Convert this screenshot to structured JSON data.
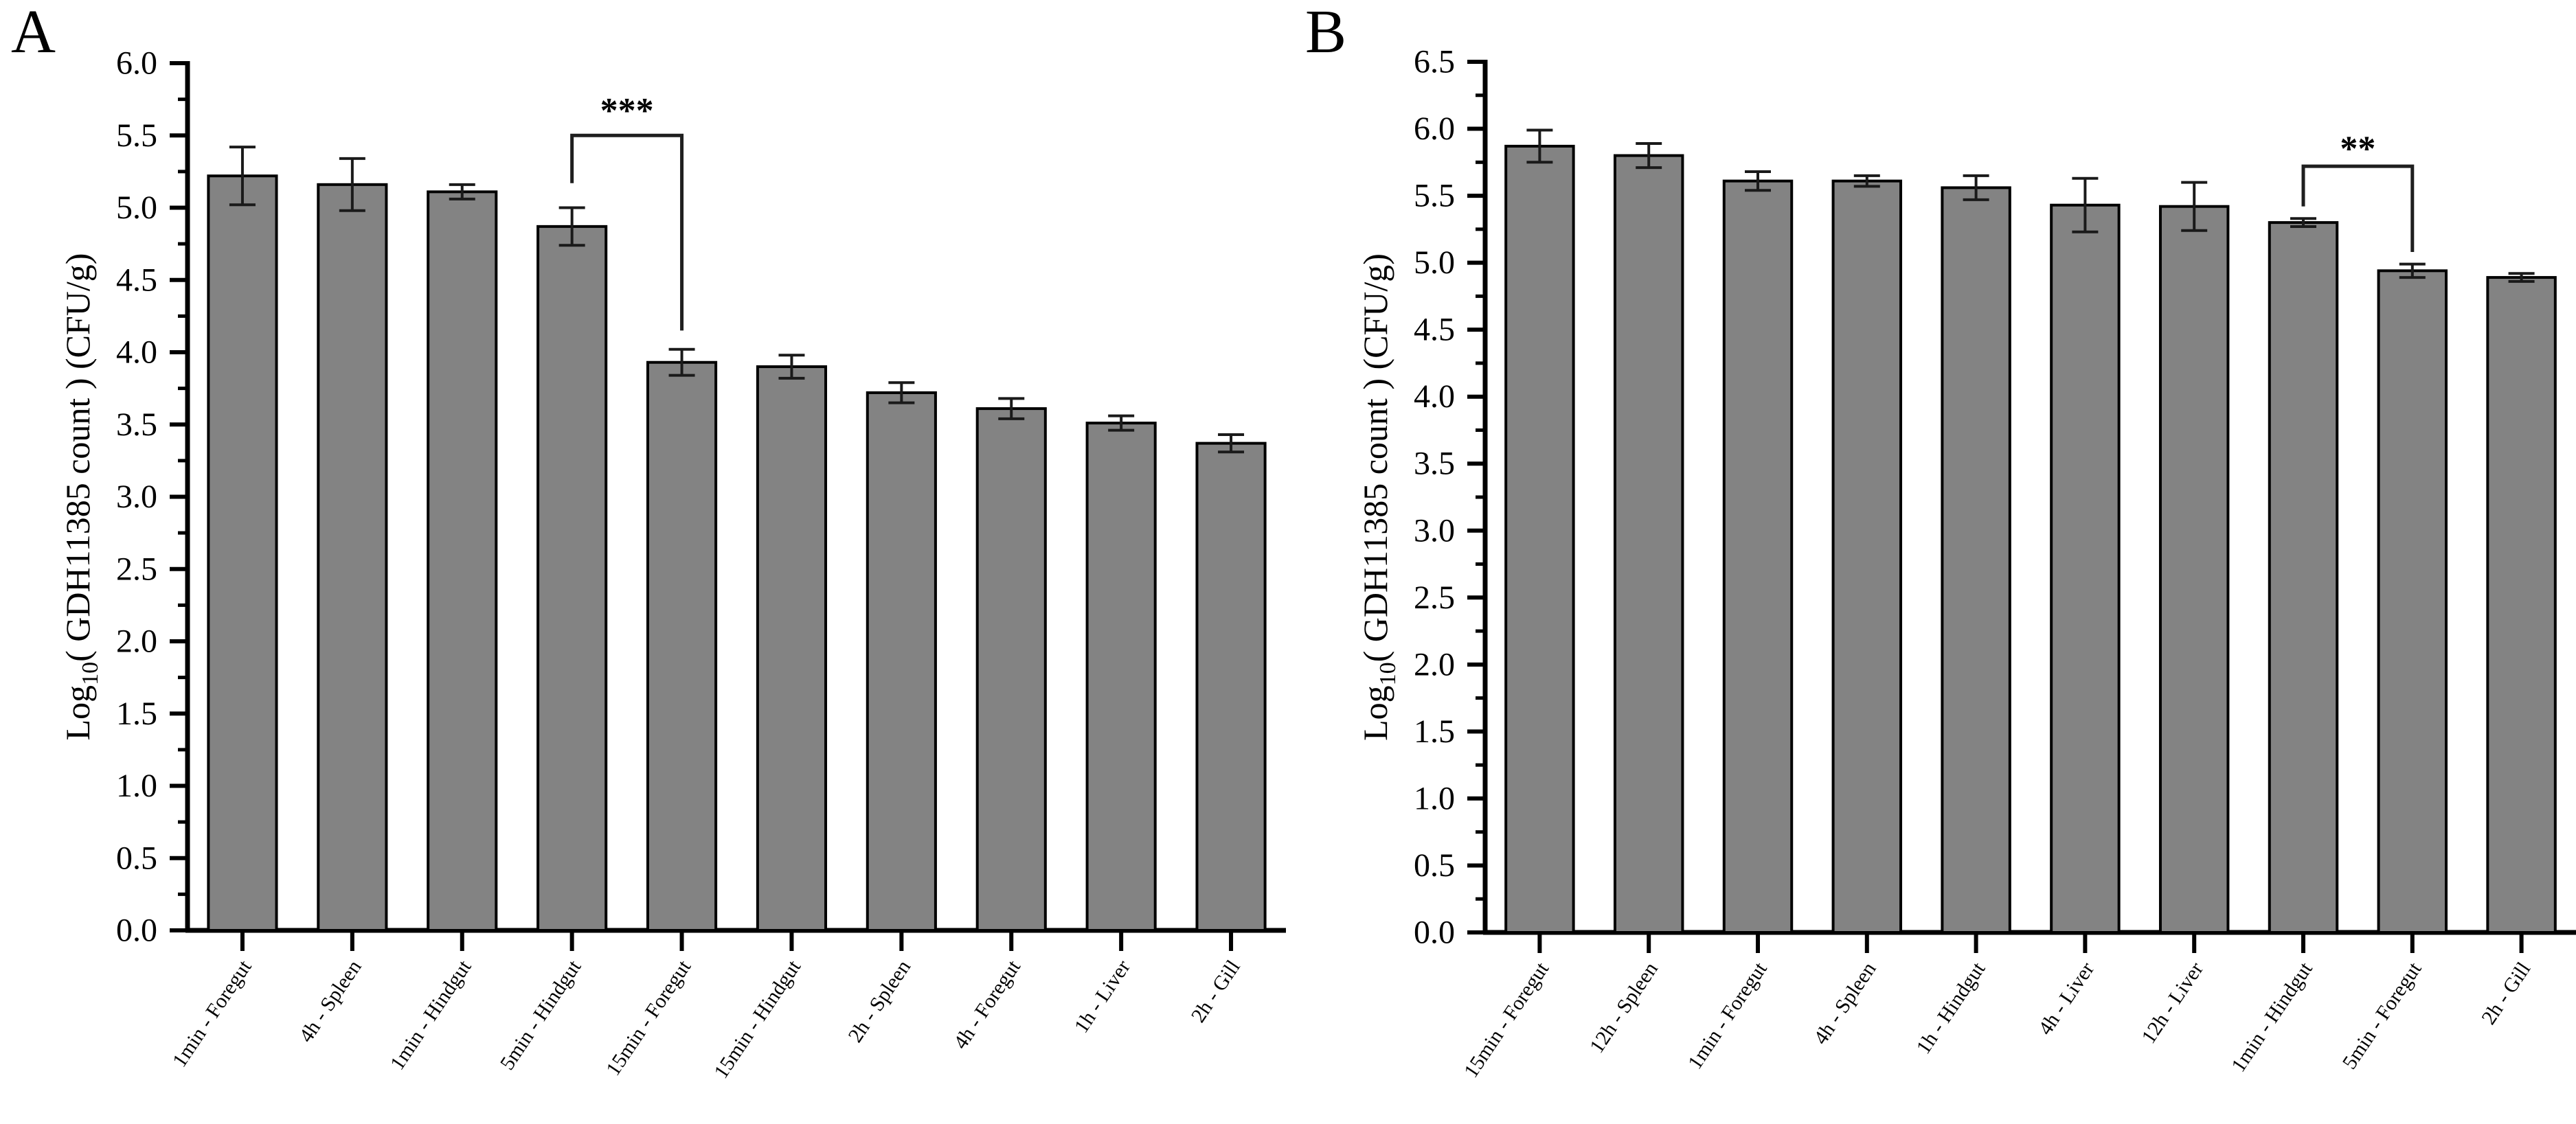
{
  "figure": {
    "background_color": "#ffffff",
    "bar_fill_color": "#838383",
    "bar_edge_color": "#000000",
    "axis_color": "#000000",
    "errorbar_color": "#1a1a1a",
    "bracket_color": "#1f1f1f",
    "text_color": "#000000"
  },
  "chart_data": [
    {
      "type": "bar",
      "panel_label": "A",
      "title": "",
      "xlabel": "",
      "ylabel": "Log10( GDH11385 count ) (CFU/g)",
      "ylabel_parts": {
        "prefix": "Log",
        "subscript": "10",
        "rest": "( GDH11385 count ) (CFU/g)"
      },
      "ylim": [
        0.0,
        6.0
      ],
      "ytick_interval": 0.5,
      "yminor_interval": 0.25,
      "grid": false,
      "legend": null,
      "categories": [
        "1min - Foregut",
        "4h - Spleen",
        "1min - Hindgut",
        "5min - Hindgut",
        "15min - Foregut",
        "15min - Hindgut",
        "2h - Spleen",
        "4h - Foregut",
        "1h - Liver",
        "2h - Gill"
      ],
      "values": [
        5.22,
        5.16,
        5.11,
        4.87,
        3.93,
        3.9,
        3.72,
        3.61,
        3.51,
        3.37
      ],
      "errors": [
        0.2,
        0.18,
        0.05,
        0.13,
        0.09,
        0.08,
        0.07,
        0.07,
        0.05,
        0.06
      ],
      "significance": {
        "label": "***",
        "from_category": "5min - Hindgut",
        "to_category": "15min - Foregut",
        "from_index": 3,
        "to_index": 4,
        "line_y": 5.5,
        "left_leg_bottom": 5.17,
        "right_leg_bottom": 4.15,
        "label_y": 5.67
      }
    },
    {
      "type": "bar",
      "panel_label": "B",
      "title": "",
      "xlabel": "",
      "ylabel": "Log10( GDH11385 count ) (CFU/g)",
      "ylabel_parts": {
        "prefix": "Log",
        "subscript": "10",
        "rest": "( GDH11385 count ) (CFU/g)"
      },
      "ylim": [
        0.0,
        6.5
      ],
      "ytick_interval": 0.5,
      "yminor_interval": 0.25,
      "grid": false,
      "legend": null,
      "categories": [
        "15min - Foregut",
        "12h - Spleen",
        "1min - Foregut",
        "4h - Spleen",
        "1h - Hindgut",
        "4h - Liver",
        "12h - Liver",
        "1min - Hindgut",
        "5min - Foregut",
        "2h - Gill"
      ],
      "values": [
        5.87,
        5.8,
        5.61,
        5.61,
        5.56,
        5.43,
        5.42,
        5.3,
        4.94,
        4.89
      ],
      "errors": [
        0.12,
        0.09,
        0.07,
        0.04,
        0.09,
        0.2,
        0.18,
        0.03,
        0.05,
        0.03
      ],
      "significance": {
        "label": "**",
        "from_category": "1min - Hindgut",
        "to_category": "5min - Foregut",
        "from_index": 7,
        "to_index": 8,
        "line_y": 5.72,
        "left_leg_bottom": 5.42,
        "right_leg_bottom": 5.08,
        "label_y": 5.85
      }
    }
  ]
}
